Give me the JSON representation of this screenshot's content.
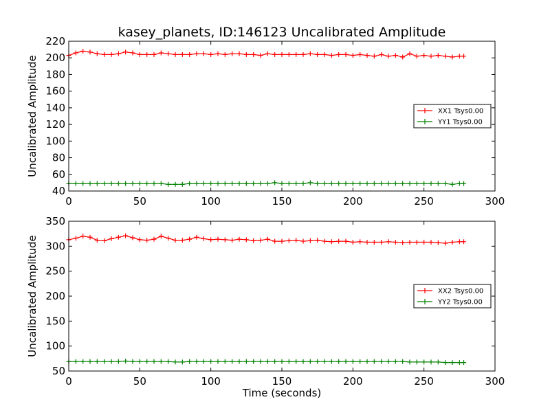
{
  "figure": {
    "title": "kasey_planets, ID:146123 Uncalibrated Amplitude",
    "xlabel": "Time (seconds)"
  },
  "colors": {
    "xx": "#ff0000",
    "yy": "#008000",
    "background": "#ffffff",
    "axes": "#000000"
  },
  "chart_data": [
    {
      "type": "line",
      "title": "kasey_planets, ID:146123 Uncalibrated Amplitude",
      "xlabel": "",
      "ylabel": "Uncalibrated Amplitude",
      "xlim": [
        0,
        300
      ],
      "ylim": [
        40,
        220
      ],
      "xticks": [
        0,
        50,
        100,
        150,
        200,
        250,
        300
      ],
      "yticks": [
        40,
        60,
        80,
        100,
        120,
        140,
        160,
        180,
        200,
        220
      ],
      "grid": false,
      "legend_position": "right",
      "marker": "+",
      "series": [
        {
          "name": "XX1 Tsys0.00",
          "color": "#ff0000",
          "x": [
            0,
            5,
            10,
            15,
            20,
            25,
            30,
            35,
            40,
            45,
            50,
            55,
            60,
            65,
            70,
            75,
            80,
            85,
            90,
            95,
            100,
            105,
            110,
            115,
            120,
            125,
            130,
            135,
            140,
            145,
            150,
            155,
            160,
            165,
            170,
            175,
            180,
            185,
            190,
            195,
            200,
            205,
            210,
            215,
            220,
            225,
            230,
            235,
            240,
            245,
            250,
            255,
            260,
            265,
            270,
            275,
            278
          ],
          "values": [
            203,
            206,
            208,
            207,
            205,
            204,
            204,
            205,
            207,
            206,
            204,
            204,
            204,
            206,
            205,
            204,
            204,
            204,
            205,
            205,
            204,
            205,
            204,
            205,
            205,
            204,
            204,
            203,
            205,
            204,
            204,
            204,
            204,
            204,
            205,
            204,
            204,
            203,
            204,
            204,
            203,
            204,
            203,
            202,
            204,
            202,
            203,
            201,
            205,
            202,
            203,
            202,
            203,
            202,
            201,
            202,
            202
          ]
        },
        {
          "name": "YY1 Tsys0.00",
          "color": "#008000",
          "x": [
            0,
            5,
            10,
            15,
            20,
            25,
            30,
            35,
            40,
            45,
            50,
            55,
            60,
            65,
            70,
            75,
            80,
            85,
            90,
            95,
            100,
            105,
            110,
            115,
            120,
            125,
            130,
            135,
            140,
            145,
            150,
            155,
            160,
            165,
            170,
            175,
            180,
            185,
            190,
            195,
            200,
            205,
            210,
            215,
            220,
            225,
            230,
            235,
            240,
            245,
            250,
            255,
            260,
            265,
            270,
            275,
            278
          ],
          "values": [
            49,
            49,
            49,
            49,
            49,
            49,
            49,
            49,
            49,
            49,
            49,
            49,
            49,
            49,
            48,
            48,
            48,
            49,
            49,
            49,
            49,
            49,
            49,
            49,
            49,
            49,
            49,
            49,
            49,
            50,
            49,
            49,
            49,
            49,
            50,
            49,
            49,
            49,
            49,
            49,
            49,
            49,
            49,
            49,
            49,
            49,
            49,
            49,
            49,
            49,
            49,
            49,
            49,
            49,
            48,
            49,
            49
          ]
        }
      ]
    },
    {
      "type": "line",
      "title": "",
      "xlabel": "Time (seconds)",
      "ylabel": "Uncalibrated Amplitude",
      "xlim": [
        0,
        300
      ],
      "ylim": [
        50,
        350
      ],
      "xticks": [
        0,
        50,
        100,
        150,
        200,
        250,
        300
      ],
      "yticks": [
        50,
        100,
        150,
        200,
        250,
        300,
        350
      ],
      "grid": false,
      "legend_position": "right",
      "marker": "+",
      "series": [
        {
          "name": "XX2 Tsys0.00",
          "color": "#ff0000",
          "x": [
            0,
            5,
            10,
            15,
            20,
            25,
            30,
            35,
            40,
            45,
            50,
            55,
            60,
            65,
            70,
            75,
            80,
            85,
            90,
            95,
            100,
            105,
            110,
            115,
            120,
            125,
            130,
            135,
            140,
            145,
            150,
            155,
            160,
            165,
            170,
            175,
            180,
            185,
            190,
            195,
            200,
            205,
            210,
            215,
            220,
            225,
            230,
            235,
            240,
            245,
            250,
            255,
            260,
            265,
            270,
            275,
            278
          ],
          "values": [
            313,
            316,
            320,
            318,
            312,
            311,
            315,
            318,
            321,
            317,
            313,
            312,
            314,
            320,
            316,
            312,
            312,
            314,
            318,
            315,
            313,
            314,
            313,
            312,
            314,
            313,
            311,
            312,
            314,
            310,
            310,
            311,
            312,
            310,
            311,
            312,
            310,
            309,
            310,
            310,
            308,
            309,
            308,
            308,
            308,
            309,
            308,
            307,
            308,
            308,
            308,
            308,
            307,
            306,
            308,
            309,
            309
          ]
        },
        {
          "name": "YY2 Tsys0.00",
          "color": "#008000",
          "x": [
            0,
            5,
            10,
            15,
            20,
            25,
            30,
            35,
            40,
            45,
            50,
            55,
            60,
            65,
            70,
            75,
            80,
            85,
            90,
            95,
            100,
            105,
            110,
            115,
            120,
            125,
            130,
            135,
            140,
            145,
            150,
            155,
            160,
            165,
            170,
            175,
            180,
            185,
            190,
            195,
            200,
            205,
            210,
            215,
            220,
            225,
            230,
            235,
            240,
            245,
            250,
            255,
            260,
            265,
            270,
            275,
            278
          ],
          "values": [
            69,
            69,
            69,
            69,
            69,
            69,
            69,
            69,
            70,
            69,
            69,
            69,
            69,
            69,
            69,
            68,
            68,
            69,
            69,
            69,
            69,
            69,
            69,
            69,
            69,
            69,
            69,
            69,
            69,
            69,
            69,
            69,
            69,
            69,
            69,
            69,
            69,
            69,
            69,
            69,
            69,
            69,
            69,
            69,
            69,
            69,
            69,
            69,
            68,
            68,
            68,
            68,
            68,
            67,
            67,
            67,
            67
          ]
        }
      ]
    }
  ]
}
